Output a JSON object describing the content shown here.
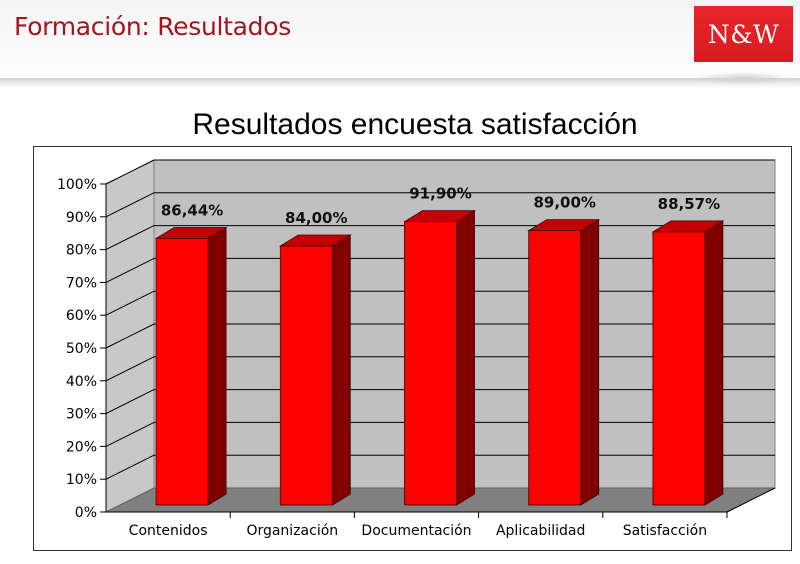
{
  "header": {
    "title": "Formación: Resultados",
    "logo_text": "N&W"
  },
  "colors": {
    "title_red": "#a6141e",
    "logo_red": "#dd1f25",
    "bar_front": "#ff0000",
    "bar_top": "#c40000",
    "bar_side": "#800000",
    "wall": "#c0c0c0",
    "floor": "#808080"
  },
  "chart_data": {
    "type": "bar",
    "title": "Resultados encuesta satisfacción",
    "categories": [
      "Contenidos",
      "Organización",
      "Documentación",
      "Aplicabilidad",
      "Satisfacción"
    ],
    "values": [
      86.44,
      84.0,
      91.9,
      89.0,
      88.57
    ],
    "value_labels": [
      "86,44%",
      "84,00%",
      "91,90%",
      "89,00%",
      "88,57%"
    ],
    "yticks": [
      "0%",
      "10%",
      "20%",
      "30%",
      "40%",
      "50%",
      "60%",
      "70%",
      "80%",
      "90%",
      "100%"
    ],
    "xlabel": "",
    "ylabel": "",
    "ylim": [
      0,
      100
    ],
    "grid": true,
    "legend": false,
    "style": "3d-column"
  }
}
